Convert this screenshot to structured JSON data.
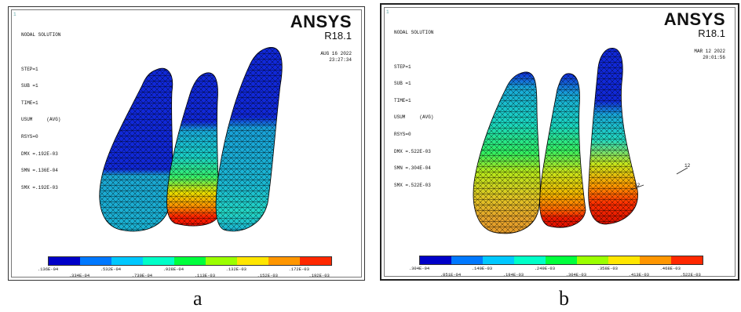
{
  "panels": [
    {
      "id": "a",
      "corner_mark": "1",
      "meta_lines": [
        "NODAL SOLUTION",
        "",
        "STEP=1",
        "SUB =1",
        "TIME=1",
        "USUM     (AVG)",
        "RSYS=0",
        "DMX =.192E-03",
        "SMN =.136E-04",
        "SMX =.192E-03"
      ],
      "logo": "ANSYS",
      "version": "R18.1",
      "date": "AUG 16 2022",
      "time": "23:27:34",
      "legend_labels_top": [
        ".136E-04",
        ".532E-04",
        ".928E-04",
        ".132E-03",
        ".172E-03"
      ],
      "legend_labels_bottom": [
        ".334E-04",
        ".730E-04",
        ".113E-03",
        ".152E-03",
        ".192E-03"
      ],
      "caption": "a"
    },
    {
      "id": "b",
      "corner_mark": "1",
      "meta_lines": [
        "NODAL SOLUTION",
        "",
        "STEP=1",
        "SUB =1",
        "TIME=1",
        "USUM     (AVG)",
        "RSYS=0",
        "DMX =.522E-03",
        "SMN =.304E-04",
        "SMX =.522E-03"
      ],
      "logo": "ANSYS",
      "version": "R18.1",
      "date": "MAR 12 2022",
      "time": "20:01:56",
      "legend_labels_top": [
        ".304E-04",
        ".140E-03",
        ".249E-03",
        ".358E-03",
        ".468E-03"
      ],
      "legend_labels_bottom": [
        ".851E-04",
        ".194E-03",
        ".304E-03",
        ".413E-03",
        ".522E-03"
      ],
      "annotations": [
        "12",
        "12"
      ],
      "caption": "b"
    }
  ],
  "legend_colors": [
    "#0000c8",
    "#0078ff",
    "#00c8ff",
    "#00ffc8",
    "#00ff3c",
    "#9bff00",
    "#ffe600",
    "#ff9600",
    "#ff2800"
  ]
}
